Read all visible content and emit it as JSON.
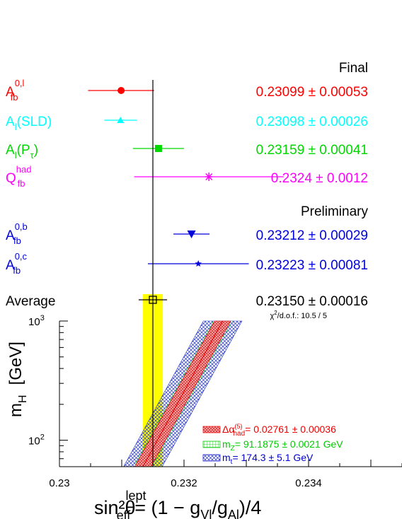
{
  "chart_data": {
    "type": "scatter",
    "x_axis": {
      "label": "sin²θ",
      "label_sup": "lept",
      "label_sub": "eff",
      "label_rest": "= (1 − g",
      "label_sub2": "Vl",
      "label_mid": "/g",
      "label_sub3": "Al",
      "label_end": ")/4",
      "range": [
        0.23,
        0.2355
      ],
      "ticks": [
        {
          "value": 0.23,
          "label": "0.23"
        },
        {
          "value": 0.232,
          "label": "0.232"
        },
        {
          "value": 0.234,
          "label": "0.234"
        }
      ]
    },
    "y_axis": {
      "label": "m",
      "label_sub": "H",
      "label_unit": "[GeV]",
      "scale": "log",
      "range": [
        60,
        1000
      ],
      "ticks": [
        {
          "value": 100,
          "base": "10",
          "exp": "2"
        },
        {
          "value": 1000,
          "base": "10",
          "exp": "3"
        }
      ]
    },
    "section_labels": {
      "final": "Final",
      "preliminary": "Preliminary"
    },
    "measurements": [
      {
        "name": "A",
        "sub": "fb",
        "sup": "0,l",
        "value": 0.23099,
        "error": 0.00053,
        "text": "0.23099 ± 0.00053",
        "color": "#ff0000",
        "marker": "circle"
      },
      {
        "name": "A",
        "sub": "l",
        "suffix": "(SLD)",
        "value": 0.23098,
        "error": 0.00026,
        "text": "0.23098 ± 0.00026",
        "color": "#00ffff",
        "marker": "triangle-up"
      },
      {
        "name": "A",
        "sub": "l",
        "suffix": "(P",
        "suffix_sub": "τ",
        "suffix_end": ")",
        "value": 0.23159,
        "error": 0.00041,
        "text": "0.23159 ± 0.00041",
        "color": "#00d800",
        "marker": "square"
      },
      {
        "name": "Q",
        "sub": "fb",
        "sup": "had",
        "value": 0.2324,
        "error": 0.0012,
        "text": "0.2324 ± 0.0012",
        "color": "#ff00ff",
        "marker": "asterisk"
      },
      {
        "name": "A",
        "sub": "fb",
        "sup": "0,b",
        "value": 0.23212,
        "error": 0.00029,
        "text": "0.23212 ± 0.00029",
        "color": "#0000dd",
        "marker": "triangle-down"
      },
      {
        "name": "A",
        "sub": "fb",
        "sup": "0,c",
        "value": 0.23223,
        "error": 0.00081,
        "text": "0.23223 ± 0.00081",
        "color": "#0000dd",
        "marker": "star"
      }
    ],
    "average": {
      "label": "Average",
      "value": 0.2315,
      "error": 0.00016,
      "text": "0.23150 ± 0.00016",
      "chi2_label": "χ",
      "chi2_sup": "2",
      "chi2_rest": "/d.o.f.: 10.5 / 5",
      "band_color": "#ffff00"
    },
    "sm_band": {
      "mh": [
        60,
        1000
      ],
      "center_x": [
        0.23134,
        0.23262
      ],
      "half_width_alpha": 0.00013,
      "half_width_total": 0.00031
    },
    "legend": {
      "placement": "bottom-right",
      "items": [
        {
          "pre": "Δα",
          "sub": "had",
          "sup": "(5)",
          "post": "= 0.02761 ± 0.00036",
          "color": "#ee0000",
          "pattern": "red-hatch"
        },
        {
          "pre": "m",
          "sub": "Z",
          "post": "= 91.1875 ± 0.0021 GeV",
          "color": "#00cc00",
          "pattern": "green-grid"
        },
        {
          "pre": "m",
          "sub": "t",
          "post": "= 174.3 ± 5.1 GeV",
          "color": "#0000cc",
          "pattern": "blue-cross"
        }
      ]
    }
  }
}
